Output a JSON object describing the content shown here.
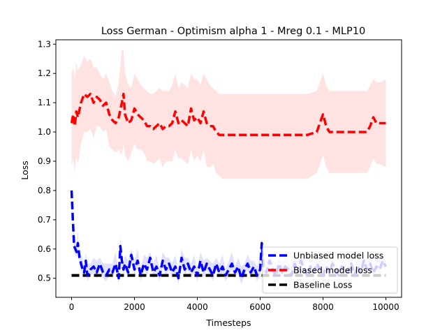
{
  "chart_data": {
    "type": "line",
    "title": "Loss German - Optimism alpha 1 - Mreg 0.1 - MLP10",
    "xlabel": "Timesteps",
    "ylabel": "Loss",
    "xlim": [
      -500,
      10500
    ],
    "ylim": [
      0.435,
      1.315
    ],
    "x_ticks": [
      0,
      2000,
      4000,
      6000,
      8000,
      10000
    ],
    "x_tick_labels": [
      "0",
      "2000",
      "4000",
      "6000",
      "8000",
      "10000"
    ],
    "y_ticks": [
      0.5,
      0.6,
      0.7,
      0.8,
      0.9,
      1.0,
      1.1,
      1.2,
      1.3
    ],
    "y_tick_labels": [
      "0.5",
      "0.6",
      "0.7",
      "0.8",
      "0.9",
      "1.0",
      "1.1",
      "1.2",
      "1.3"
    ],
    "grid": false,
    "legend_position": "lower-right",
    "series": [
      {
        "name": "Unbiased model loss",
        "color": "#0000ff",
        "band_color": "#0000ff",
        "x": [
          0,
          40,
          80,
          120,
          160,
          200,
          250,
          300,
          350,
          400,
          450,
          500,
          600,
          700,
          800,
          900,
          1000,
          1100,
          1200,
          1300,
          1400,
          1500,
          1550,
          1600,
          1650,
          1700,
          1800,
          1900,
          2000,
          2100,
          2200,
          2300,
          2400,
          2500,
          2600,
          2700,
          2800,
          2900,
          3000,
          3100,
          3200,
          3300,
          3400,
          3500,
          3600,
          3700,
          3800,
          3900,
          4000,
          4100,
          4200,
          4300,
          4400,
          4500,
          4600,
          4700,
          4800,
          4900,
          5000,
          5100,
          5200,
          5300,
          5400,
          5500,
          5600,
          5700,
          5800,
          5900,
          6000,
          6050,
          6100,
          6200,
          6300,
          6400,
          6500,
          6600,
          6700,
          6800,
          6900,
          7000,
          7100,
          7200,
          7300,
          7400,
          7500,
          7600,
          7700,
          7800,
          7900,
          8000,
          8100,
          8200,
          8300,
          8400,
          8500,
          8600,
          8700,
          8800,
          8900,
          9000,
          9100,
          9200,
          9300,
          9400,
          9500,
          9600,
          9700,
          9800,
          9900,
          10000
        ],
        "y": [
          0.8,
          0.7,
          0.61,
          0.6,
          0.59,
          0.62,
          0.57,
          0.55,
          0.53,
          0.52,
          0.56,
          0.51,
          0.53,
          0.54,
          0.52,
          0.55,
          0.52,
          0.51,
          0.53,
          0.52,
          0.55,
          0.5,
          0.61,
          0.56,
          0.53,
          0.55,
          0.52,
          0.58,
          0.53,
          0.56,
          0.51,
          0.55,
          0.53,
          0.57,
          0.52,
          0.54,
          0.51,
          0.56,
          0.53,
          0.55,
          0.52,
          0.54,
          0.5,
          0.57,
          0.53,
          0.55,
          0.52,
          0.54,
          0.51,
          0.56,
          0.52,
          0.55,
          0.53,
          0.51,
          0.55,
          0.52,
          0.54,
          0.51,
          0.53,
          0.55,
          0.52,
          0.54,
          0.5,
          0.53,
          0.55,
          0.52,
          0.54,
          0.51,
          0.53,
          0.62,
          0.54,
          0.52,
          0.56,
          0.53,
          0.51,
          0.55,
          0.52,
          0.54,
          0.53,
          0.51,
          0.55,
          0.52,
          0.56,
          0.53,
          0.51,
          0.54,
          0.52,
          0.55,
          0.53,
          0.51,
          0.54,
          0.52,
          0.55,
          0.53,
          0.51,
          0.54,
          0.53,
          0.52,
          0.55,
          0.51,
          0.54,
          0.52,
          0.56,
          0.53,
          0.55,
          0.52,
          0.54,
          0.53,
          0.56,
          0.54
        ]
      },
      {
        "name": "Biased model loss",
        "color": "#ff0000",
        "band_color": "#ffcccc",
        "x": [
          0,
          50,
          100,
          150,
          200,
          300,
          400,
          500,
          600,
          700,
          800,
          900,
          1000,
          1100,
          1200,
          1300,
          1400,
          1500,
          1600,
          1650,
          1700,
          1800,
          1900,
          2000,
          2100,
          2200,
          2300,
          2400,
          2500,
          2600,
          2700,
          2800,
          2900,
          3000,
          3100,
          3200,
          3300,
          3400,
          3500,
          3600,
          3700,
          3800,
          3900,
          4000,
          4100,
          4200,
          4300,
          4400,
          4500,
          4600,
          4700,
          4800,
          5000,
          5500,
          6000,
          6500,
          7000,
          7500,
          7800,
          7900,
          8000,
          8100,
          8200,
          8500,
          9000,
          9300,
          9400,
          9500,
          9600,
          9700,
          9800,
          10000
        ],
        "y": [
          1.03,
          1.06,
          1.02,
          1.07,
          1.05,
          1.1,
          1.13,
          1.12,
          1.13,
          1.1,
          1.12,
          1.11,
          1.09,
          1.1,
          1.06,
          1.04,
          1.03,
          1.05,
          1.1,
          1.13,
          1.06,
          1.03,
          1.04,
          1.08,
          1.06,
          1.05,
          1.04,
          1.02,
          1.02,
          1.01,
          1.02,
          1.03,
          1.01,
          1.02,
          1.02,
          1.03,
          1.07,
          1.03,
          1.04,
          1.03,
          1.02,
          1.08,
          1.04,
          1.05,
          1.03,
          1.07,
          1.03,
          1.02,
          1.02,
          1.0,
          0.99,
          0.99,
          0.99,
          0.99,
          0.99,
          0.99,
          0.99,
          0.99,
          1.0,
          1.03,
          1.06,
          1.02,
          1.0,
          1.0,
          1.0,
          1.0,
          1.0,
          1.02,
          1.05,
          1.03,
          1.03,
          1.03
        ],
        "upper": [
          1.2,
          1.22,
          1.18,
          1.24,
          1.21,
          1.23,
          1.26,
          1.24,
          1.25,
          1.22,
          1.22,
          1.2,
          1.18,
          1.2,
          1.17,
          1.14,
          1.12,
          1.17,
          1.28,
          1.28,
          1.2,
          1.16,
          1.15,
          1.2,
          1.18,
          1.16,
          1.15,
          1.14,
          1.13,
          1.13,
          1.14,
          1.15,
          1.14,
          1.14,
          1.14,
          1.16,
          1.2,
          1.15,
          1.17,
          1.16,
          1.15,
          1.2,
          1.18,
          1.18,
          1.16,
          1.2,
          1.18,
          1.16,
          1.15,
          1.14,
          1.13,
          1.13,
          1.13,
          1.13,
          1.13,
          1.13,
          1.13,
          1.13,
          1.14,
          1.17,
          1.2,
          1.16,
          1.14,
          1.14,
          1.14,
          1.14,
          1.14,
          1.16,
          1.18,
          1.17,
          1.17,
          1.18
        ],
        "lower": [
          0.88,
          0.91,
          0.86,
          0.92,
          0.89,
          0.96,
          1.0,
          1.0,
          1.01,
          0.98,
          1.02,
          1.02,
          1.0,
          1.01,
          0.95,
          0.94,
          0.93,
          0.94,
          0.92,
          0.96,
          0.92,
          0.9,
          0.93,
          0.96,
          0.94,
          0.94,
          0.93,
          0.9,
          0.9,
          0.89,
          0.9,
          0.91,
          0.88,
          0.9,
          0.9,
          0.9,
          0.94,
          0.91,
          0.91,
          0.9,
          0.89,
          0.94,
          0.9,
          0.92,
          0.9,
          0.94,
          0.88,
          0.88,
          0.89,
          0.86,
          0.85,
          0.84,
          0.84,
          0.84,
          0.84,
          0.84,
          0.84,
          0.84,
          0.86,
          0.89,
          0.92,
          0.88,
          0.86,
          0.86,
          0.86,
          0.86,
          0.86,
          0.88,
          0.91,
          0.89,
          0.89,
          0.88
        ]
      },
      {
        "name": "Baseline Loss",
        "color": "#000000",
        "x": [
          0,
          10000
        ],
        "y": [
          0.51,
          0.51
        ]
      }
    ]
  }
}
